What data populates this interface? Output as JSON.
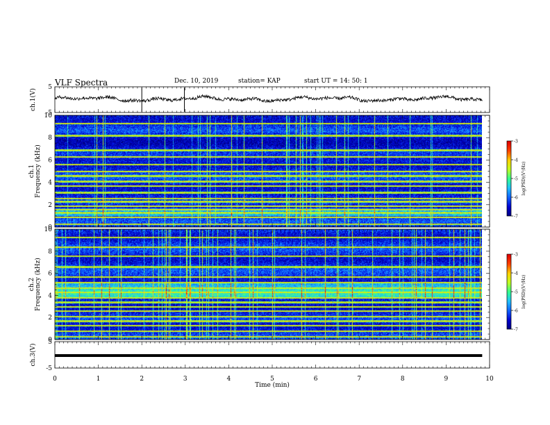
{
  "header": {
    "title": "VLF Spectra",
    "date": "Dec. 10, 2019",
    "station": "station= KAP",
    "start": "start  UT =   14: 50: 1"
  },
  "chart_data": [
    {
      "type": "line",
      "panel": "ch1-waveform",
      "ylabel": "ch.1(V)",
      "ylim": [
        -5,
        5
      ],
      "yticks": [
        "5",
        "-5"
      ],
      "x_range_min": [
        0,
        9.83
      ],
      "note_values": "noisy waveform mostly between -1 and 2 V",
      "spikes_min": [
        2.0,
        2.98
      ]
    },
    {
      "type": "heatmap",
      "panel": "ch1-spectrogram",
      "ylabel_line1": "ch.1",
      "ylabel_line2": "Frequency (kHz)",
      "ylim": [
        0,
        10
      ],
      "yticks": [
        "0",
        "2",
        "4",
        "6",
        "8",
        "10"
      ],
      "x_range_min": [
        0,
        9.83
      ],
      "bands_khz": [
        0.3,
        0.9,
        1.3,
        1.6,
        1.9,
        2.3,
        2.6,
        3.1,
        3.7,
        4.1,
        4.6,
        5.0,
        5.6,
        6.3,
        6.9,
        8.2,
        9.3
      ],
      "bright_band_khz": [
        1.0,
        1.7
      ]
    },
    {
      "type": "heatmap",
      "panel": "ch2-spectrogram",
      "ylabel_line1": "ch.2",
      "ylabel_line2": "Frequency (kHz)",
      "ylim": [
        0,
        10
      ],
      "yticks": [
        "0",
        "2",
        "4",
        "6",
        "8",
        "10"
      ],
      "x_range_min": [
        0,
        9.83
      ],
      "bands_khz": [
        0.3,
        0.8,
        1.3,
        1.7,
        2.1,
        2.6,
        3.0,
        3.4,
        3.8,
        4.3,
        4.7,
        5.2,
        5.7,
        6.6,
        7.6,
        8.4,
        9.3
      ],
      "bright_band_khz": [
        3.8,
        5.2
      ]
    },
    {
      "type": "line",
      "panel": "ch3-waveform",
      "ylabel": "ch.3(V)",
      "ylim": [
        -5,
        5
      ],
      "yticks": [
        "5",
        "-5"
      ],
      "constant_value_v": 0,
      "x_range_min": [
        0,
        9.83
      ],
      "xlabel": "Time  (min)",
      "xlim": [
        0,
        10
      ],
      "xticks": [
        "0",
        "1",
        "2",
        "3",
        "4",
        "5",
        "6",
        "7",
        "8",
        "9",
        "10"
      ]
    }
  ],
  "colorbars": [
    {
      "label": "log(PSD)(V²/Hz)",
      "ticks": [
        "-3",
        "-4",
        "-5",
        "-6",
        "-7"
      ],
      "range": [
        -7,
        -3
      ]
    },
    {
      "label": "log(PSD)(V²/Hz)",
      "ticks": [
        "-3",
        "-4",
        "-5",
        "-6",
        "-7"
      ],
      "range": [
        -7,
        -3
      ]
    }
  ],
  "colors": {
    "colormap": [
      "#00007f",
      "#0000d0",
      "#1060ff",
      "#20c0ff",
      "#30ff90",
      "#c0ff20",
      "#ffd000",
      "#ff4000",
      "#e00000",
      "#ffffff"
    ],
    "waveform": "#000000"
  }
}
